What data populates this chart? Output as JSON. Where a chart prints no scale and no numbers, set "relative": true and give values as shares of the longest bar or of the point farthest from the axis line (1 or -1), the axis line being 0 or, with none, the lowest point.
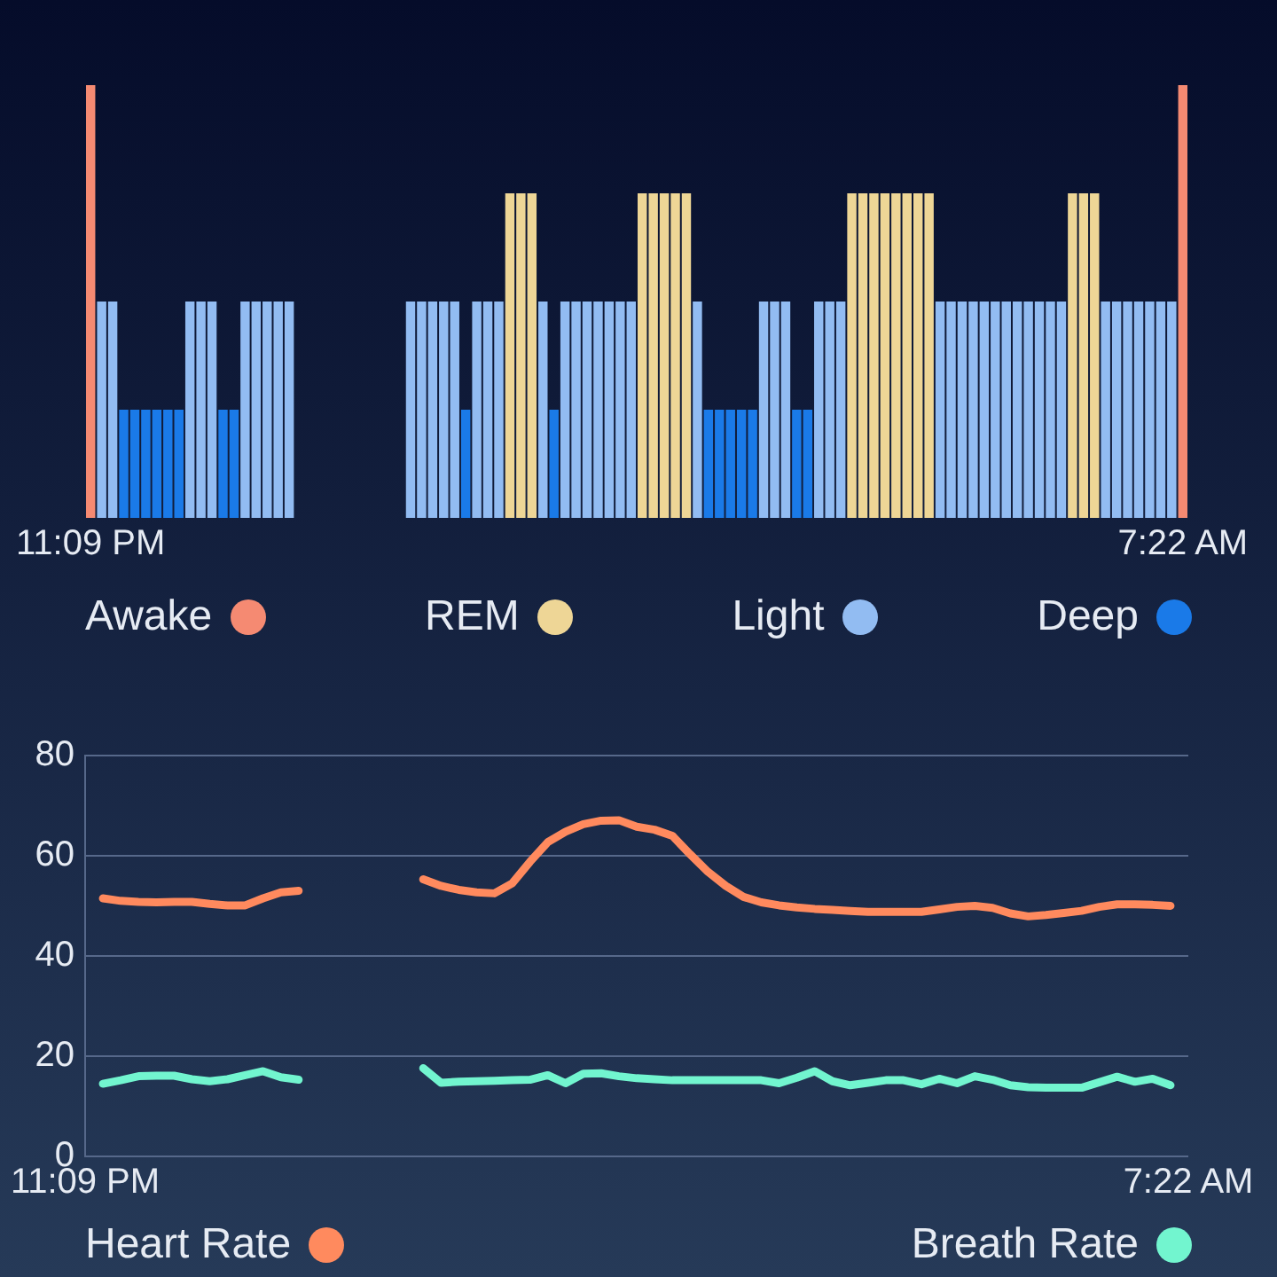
{
  "chart_data": [
    {
      "type": "bar",
      "relative": true,
      "stacked": true,
      "legend": "bottom",
      "categories": [
        "11:09 PM",
        null,
        null,
        null,
        null,
        null,
        null,
        null,
        null,
        null,
        null,
        null,
        null,
        null,
        null,
        null,
        null,
        null,
        null,
        null,
        null,
        null,
        null,
        null,
        null,
        null,
        null,
        null,
        null,
        null,
        null,
        null,
        null,
        null,
        null,
        null,
        null,
        null,
        null,
        null,
        null,
        null,
        null,
        null,
        null,
        null,
        null,
        null,
        null,
        null,
        null,
        null,
        null,
        null,
        null,
        null,
        null,
        null,
        null,
        null,
        null,
        null,
        null,
        null,
        null,
        null,
        null,
        null,
        null,
        null,
        null,
        null,
        null,
        null,
        null,
        null,
        null,
        null,
        null,
        null,
        null,
        null,
        null,
        null,
        null,
        null,
        null,
        null,
        null,
        null,
        null,
        null,
        null,
        null,
        null,
        null,
        null,
        null,
        null,
        "7:22 AM"
      ],
      "series": [
        {
          "name": "Awake",
          "color": "#f58a72",
          "values": [
            1,
            null,
            null,
            null,
            null,
            null,
            null,
            null,
            null,
            null,
            null,
            null,
            null,
            null,
            null,
            null,
            null,
            null,
            null,
            null,
            null,
            null,
            null,
            null,
            null,
            null,
            null,
            null,
            null,
            null,
            null,
            null,
            null,
            null,
            null,
            null,
            null,
            null,
            null,
            null,
            null,
            null,
            null,
            null,
            null,
            null,
            null,
            null,
            null,
            null,
            null,
            null,
            null,
            null,
            null,
            null,
            null,
            null,
            null,
            null,
            null,
            null,
            null,
            null,
            null,
            null,
            null,
            null,
            null,
            null,
            null,
            null,
            null,
            null,
            null,
            null,
            null,
            null,
            null,
            null,
            null,
            null,
            null,
            null,
            null,
            null,
            null,
            null,
            null,
            null,
            null,
            null,
            null,
            null,
            null,
            null,
            null,
            null,
            null,
            1
          ]
        },
        {
          "name": "REM",
          "color": "#eed696",
          "values": [
            null,
            null,
            null,
            null,
            null,
            null,
            null,
            null,
            null,
            null,
            null,
            null,
            null,
            null,
            null,
            null,
            null,
            null,
            null,
            null,
            null,
            null,
            null,
            null,
            null,
            null,
            null,
            null,
            null,
            null,
            null,
            null,
            null,
            null,
            null,
            null,
            null,
            null,
            0.75,
            0.75,
            0.75,
            null,
            null,
            null,
            null,
            null,
            null,
            null,
            null,
            null,
            0.75,
            0.75,
            0.75,
            0.75,
            0.75,
            null,
            null,
            null,
            null,
            null,
            null,
            null,
            null,
            null,
            null,
            null,
            null,
            null,
            null,
            0.75,
            0.75,
            0.75,
            0.75,
            0.75,
            0.75,
            0.75,
            0.75,
            null,
            null,
            null,
            null,
            null,
            null,
            null,
            null,
            null,
            null,
            null,
            null,
            0.75,
            0.75,
            0.75,
            null,
            null,
            null,
            null,
            null,
            null,
            null,
            null
          ]
        },
        {
          "name": "Light",
          "color": "#92bcf2",
          "values": [
            null,
            0.5,
            0.5,
            null,
            null,
            null,
            null,
            null,
            null,
            0.5,
            0.5,
            0.5,
            null,
            null,
            0.5,
            0.5,
            0.5,
            0.5,
            0.5,
            null,
            null,
            null,
            null,
            null,
            null,
            null,
            null,
            null,
            null,
            0.5,
            0.5,
            0.5,
            0.5,
            0.5,
            null,
            0.5,
            0.5,
            0.5,
            null,
            null,
            null,
            0.5,
            null,
            0.5,
            0.5,
            0.5,
            0.5,
            0.5,
            0.5,
            0.5,
            null,
            null,
            null,
            null,
            null,
            0.5,
            null,
            null,
            null,
            null,
            null,
            0.5,
            0.5,
            0.5,
            null,
            null,
            0.5,
            0.5,
            0.5,
            null,
            null,
            null,
            null,
            null,
            null,
            null,
            null,
            0.5,
            0.5,
            0.5,
            0.5,
            0.5,
            0.5,
            0.5,
            0.5,
            0.5,
            0.5,
            0.5,
            0.5,
            null,
            null,
            null,
            0.5,
            0.5,
            0.5,
            0.5,
            0.5,
            0.5,
            0.5,
            null
          ]
        },
        {
          "name": "Deep",
          "color": "#1a7ae8",
          "values": [
            null,
            null,
            null,
            0.25,
            0.25,
            0.25,
            0.25,
            0.25,
            0.25,
            null,
            null,
            null,
            0.25,
            0.25,
            null,
            null,
            null,
            null,
            null,
            null,
            null,
            null,
            null,
            null,
            null,
            null,
            null,
            null,
            null,
            null,
            null,
            null,
            null,
            null,
            0.25,
            null,
            null,
            null,
            null,
            null,
            null,
            null,
            0.25,
            null,
            null,
            null,
            null,
            null,
            null,
            null,
            null,
            null,
            null,
            null,
            null,
            null,
            0.25,
            0.25,
            0.25,
            0.25,
            0.25,
            null,
            null,
            null,
            0.25,
            0.25,
            null,
            null,
            null,
            null,
            null,
            null,
            null,
            null,
            null,
            null,
            null,
            null,
            null,
            null,
            null,
            null,
            null,
            null,
            null,
            null,
            null,
            null,
            null,
            null,
            null,
            null,
            null,
            null,
            null,
            null,
            null,
            null,
            null,
            null
          ]
        }
      ]
    },
    {
      "type": "line",
      "legend": "bottom",
      "grid": "y",
      "marker": "none",
      "line_style": "solid",
      "categories": [
        "11:09 PM",
        null,
        null,
        null,
        null,
        null,
        null,
        null,
        null,
        null,
        null,
        null,
        null,
        null,
        null,
        null,
        null,
        null,
        null,
        null,
        null,
        null,
        null,
        null,
        null,
        null,
        null,
        null,
        null,
        null,
        null,
        null,
        null,
        null,
        null,
        null,
        null,
        null,
        null,
        null,
        null,
        null,
        null,
        null,
        null,
        null,
        null,
        null,
        null,
        null,
        null,
        null,
        null,
        null,
        null,
        null,
        null,
        null,
        null,
        null,
        null,
        null,
        "7:22 AM"
      ],
      "ylim": [
        0,
        80
      ],
      "yticks": [
        0,
        20,
        40,
        60,
        80
      ],
      "series": [
        {
          "name": "Heart Rate",
          "color": "#ff8a5e",
          "values": [
            null,
            51.5,
            51,
            50.8,
            50.7,
            50.8,
            50.8,
            50.4,
            50.1,
            50.1,
            51.5,
            52.7,
            53,
            null,
            null,
            null,
            null,
            null,
            null,
            55.3,
            54,
            53.2,
            52.7,
            52.5,
            54.5,
            58.8,
            62.7,
            64.8,
            66.3,
            67,
            67.1,
            65.8,
            65.2,
            64,
            60.3,
            56.8,
            54,
            51.8,
            50.7,
            50.1,
            49.7,
            49.4,
            49.2,
            49,
            48.8,
            48.8,
            48.8,
            48.8,
            49.3,
            49.8,
            50,
            49.6,
            48.5,
            47.9,
            48.2,
            48.6,
            49,
            49.8,
            50.3,
            50.3,
            50.2,
            50,
            null
          ]
        },
        {
          "name": "Breath Rate",
          "color": "#72f5cf",
          "values": [
            null,
            14.5,
            15.2,
            16,
            16.1,
            16.1,
            15.4,
            15,
            15.4,
            16.2,
            17,
            15.8,
            15.3,
            null,
            null,
            null,
            null,
            null,
            null,
            17.6,
            14.7,
            14.9,
            15,
            15.1,
            15.2,
            15.3,
            16.2,
            14.6,
            16.5,
            16.6,
            16,
            15.6,
            15.4,
            15.2,
            15.2,
            15.2,
            15.2,
            15.2,
            15.2,
            14.6,
            15.7,
            17,
            15,
            14.2,
            14.7,
            15.2,
            15.2,
            14.4,
            15.5,
            14.6,
            16,
            15.3,
            14.2,
            13.8,
            13.7,
            13.7,
            13.7,
            14.8,
            15.9,
            14.9,
            15.5,
            14.2,
            null
          ]
        }
      ]
    }
  ]
}
